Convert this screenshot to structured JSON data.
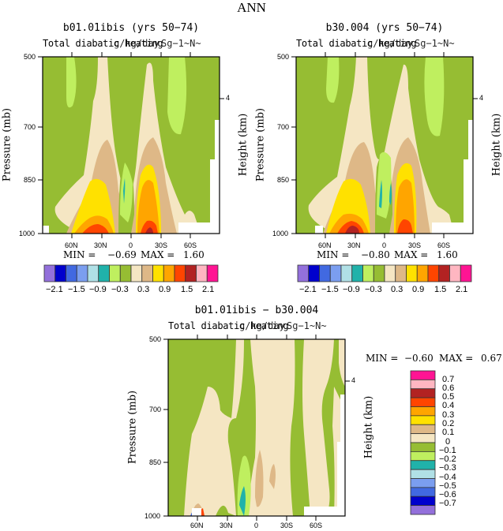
{
  "main_title": "ANN",
  "colors": {
    "levels_full": [
      "#9370DB",
      "#0000CD",
      "#4169E1",
      "#7B9EF0",
      "#B0E0E6",
      "#20B2AA",
      "#BFEF5F",
      "#96BD33",
      "#F5E6C3",
      "#DEB887",
      "#FFE100",
      "#FFA500",
      "#FF4500",
      "#B22222",
      "#FFB6C1",
      "#FF1493"
    ],
    "blank": "#FFFFFF"
  },
  "chart_data": [
    {
      "type": "heatmap",
      "title": "b01.01ibis (yrs 50−74)",
      "left_title": "Total diabatic heating",
      "right_title": "g/kg/day",
      "overlay_title": "Sg−1~N~",
      "ylabel": "Pressure (mb)",
      "ylabel_right": "Height (km)",
      "yticks": [
        "500",
        "700",
        "850",
        "1000"
      ],
      "yticks_right": [
        "4"
      ],
      "xticks": [
        "60N",
        "30N",
        "0",
        "30S",
        "60S"
      ],
      "ylim": [
        1000,
        500
      ],
      "xlim": [
        90,
        -90
      ],
      "min_label": "MIN =",
      "min_value": "−0.69",
      "max_label": "MAX =",
      "max_value": "1.60",
      "colorbar_labels": [
        "−2.1",
        "−1.5",
        "−0.9",
        "−0.3",
        "0.3",
        "0.9",
        "1.5",
        "2.1"
      ]
    },
    {
      "type": "heatmap",
      "title": "b30.004 (yrs 50−74)",
      "left_title": "Total diabatic heating",
      "right_title": "g/kg/day",
      "overlay_title": "Sg−1~N~",
      "ylabel": "Pressure (mb)",
      "ylabel_right": "Height (km)",
      "yticks": [
        "500",
        "700",
        "850",
        "1000"
      ],
      "yticks_right": [
        "4"
      ],
      "xticks": [
        "60N",
        "30N",
        "0",
        "30S",
        "60S"
      ],
      "ylim": [
        1000,
        500
      ],
      "xlim": [
        90,
        -90
      ],
      "min_label": "MIN =",
      "min_value": "−0.80",
      "max_label": "MAX =",
      "max_value": "1.60",
      "colorbar_labels": [
        "−2.1",
        "−1.5",
        "−0.9",
        "−0.3",
        "0.3",
        "0.9",
        "1.5",
        "2.1"
      ]
    },
    {
      "type": "heatmap",
      "title": "b01.01ibis − b30.004",
      "left_title": "Total diabatic heating",
      "right_title": "g/kg/day",
      "overlay_title": "Sg−1~N~",
      "ylabel": "Pressure (mb)",
      "ylabel_right": "Height (km)",
      "yticks": [
        "500",
        "700",
        "850",
        "1000"
      ],
      "yticks_right": [
        "4"
      ],
      "xticks": [
        "60N",
        "30N",
        "0",
        "30S",
        "60S"
      ],
      "ylim": [
        1000,
        500
      ],
      "xlim": [
        90,
        -90
      ],
      "min_label": "MIN =",
      "min_value": "−0.60",
      "max_label": "MAX =",
      "max_value": "0.67",
      "colorbar_labels": [
        "0.7",
        "0.6",
        "0.5",
        "0.4",
        "0.3",
        "0.2",
        "0.1",
        "0",
        "−0.1",
        "−0.2",
        "−0.3",
        "−0.4",
        "−0.5",
        "−0.6",
        "−0.7"
      ]
    }
  ]
}
